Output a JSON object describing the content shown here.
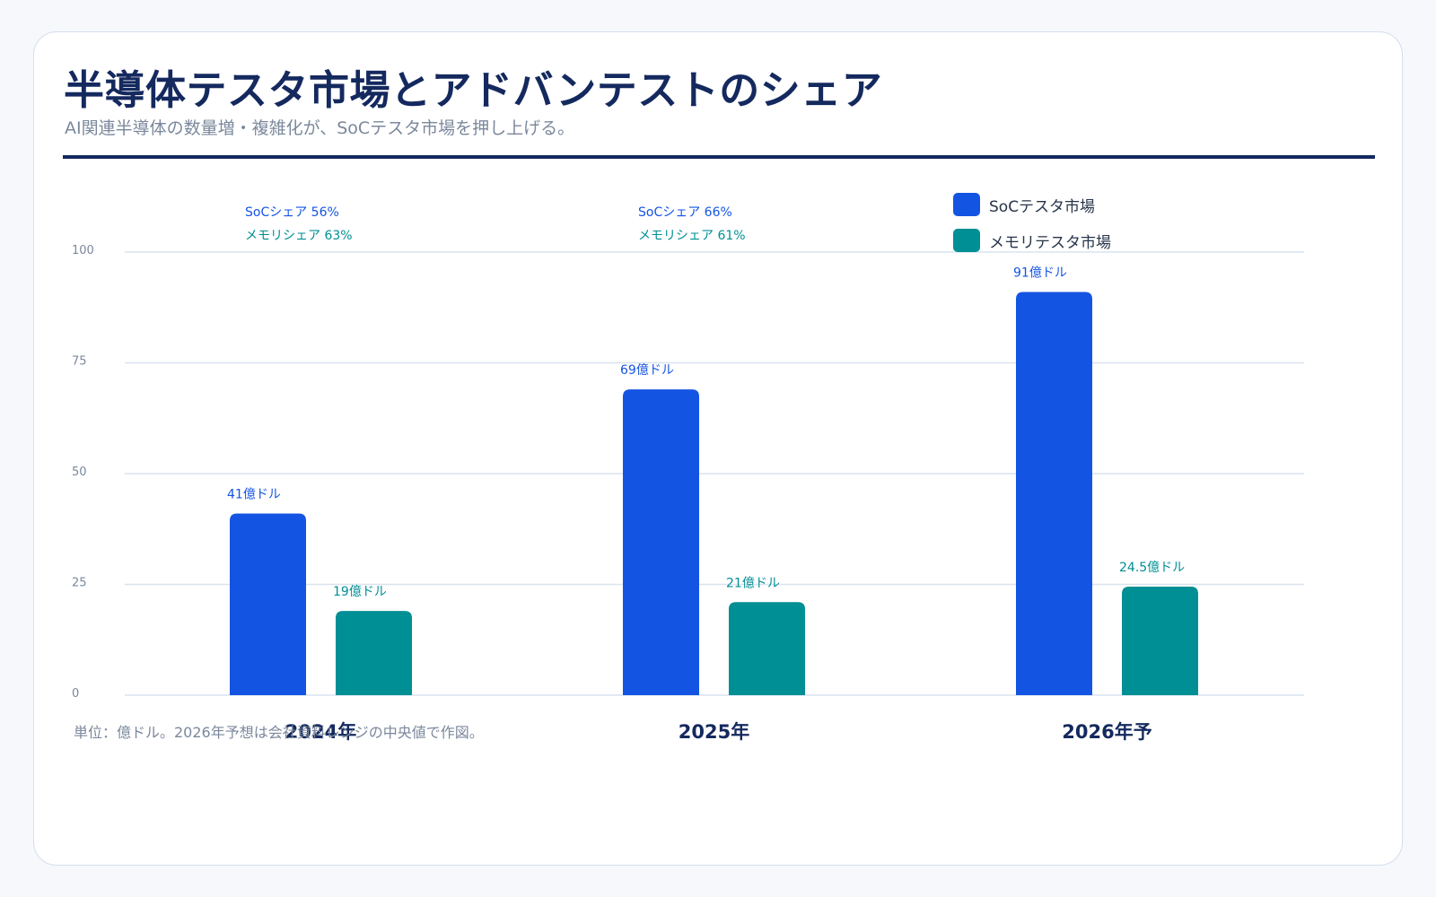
{
  "header": {
    "title": "半導体テスタ市場とアドバンテストのシェア",
    "subtitle": "AI関連半導体の数量増・複雑化が、SoCテスタ市場を押し上げる。"
  },
  "footnote": "単位：億ドル。2026年予想は会社資料レンジの中央値で作図。",
  "colors": {
    "soc": "#1454e3",
    "memory": "#008f94",
    "title": "#14295e",
    "grid": "#d9e3ef",
    "axis_text": "#7b889c"
  },
  "chart_data": {
    "type": "bar",
    "categories": [
      "2024年",
      "2025年",
      "2026年予"
    ],
    "series": [
      {
        "name": "SoCテスタ市場",
        "values": [
          41,
          69,
          91
        ],
        "labels": [
          "41億ドル",
          "69億ドル",
          "91億ドル"
        ],
        "color": "#1454e3"
      },
      {
        "name": "メモリテスタ市場",
        "values": [
          19,
          21,
          24.5
        ],
        "labels": [
          "19億ドル",
          "21億ドル",
          "24.5億ドル"
        ],
        "color": "#008f94"
      }
    ],
    "annotations": [
      {
        "category": "2024年",
        "soc_share": "SoCシェア 56%",
        "memory_share": "メモリシェア 63%"
      },
      {
        "category": "2025年",
        "soc_share": "SoCシェア 66%",
        "memory_share": "メモリシェア 61%"
      },
      {
        "category": "2026年予",
        "soc_share": "",
        "memory_share": ""
      }
    ],
    "yticks": [
      "0",
      "25",
      "50",
      "75",
      "100"
    ],
    "ylim": [
      0,
      100
    ],
    "grid": true,
    "legend_position": "top-right",
    "xlabel": "",
    "ylabel": ""
  }
}
